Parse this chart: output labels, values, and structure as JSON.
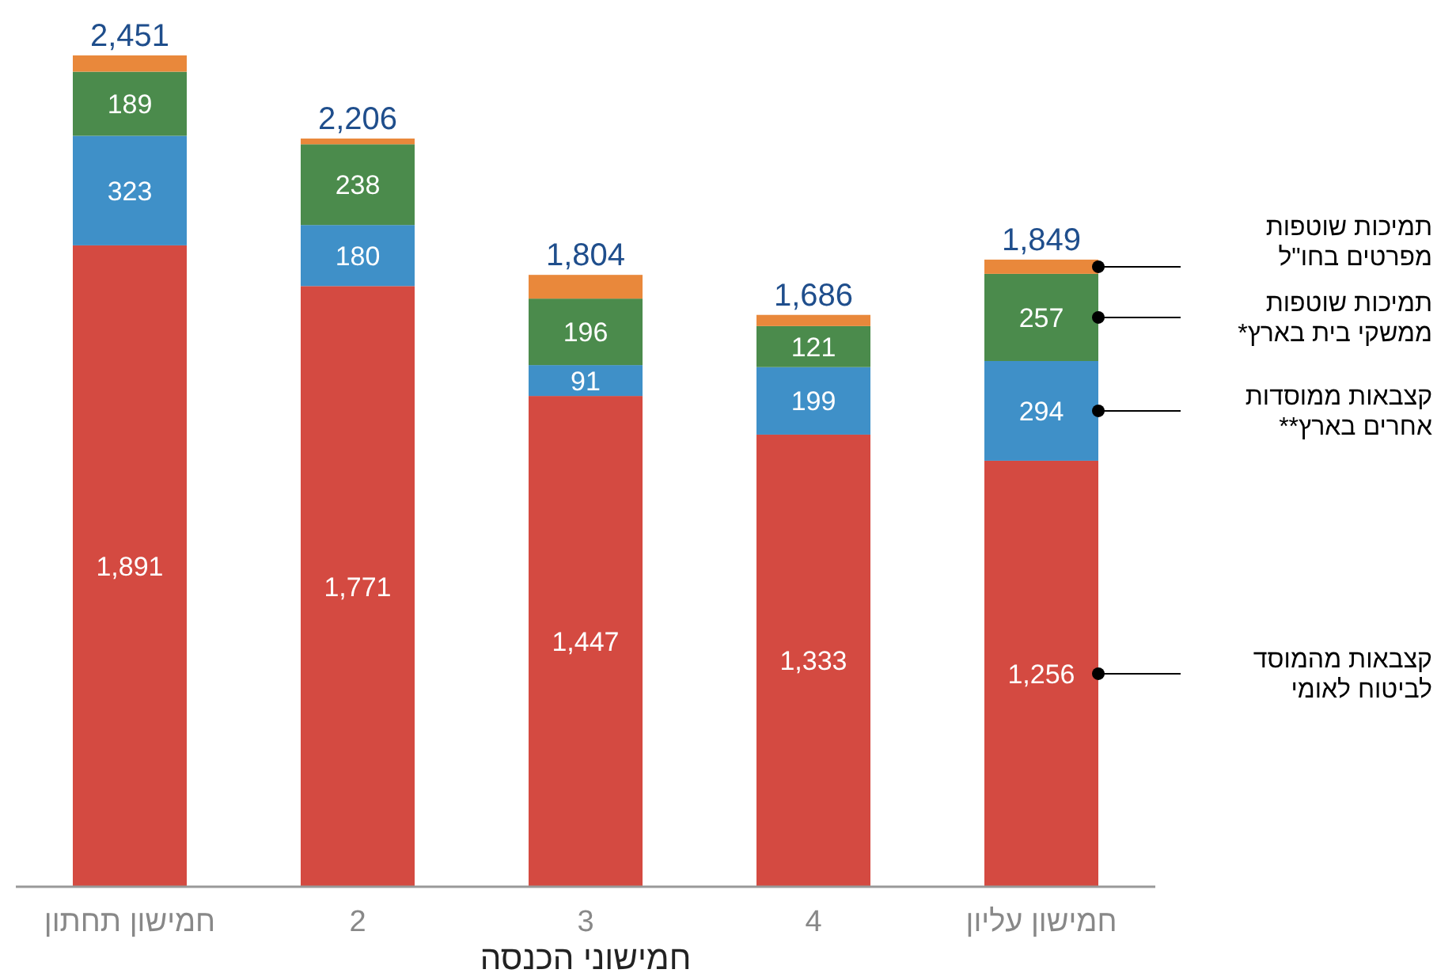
{
  "chart_data": {
    "type": "bar",
    "stacked": true,
    "xlabel": "חמישוני הכנסה",
    "categories": [
      "חמישון תחתון",
      "2",
      "3",
      "4",
      "חמישון עליון"
    ],
    "series": [
      {
        "name": "קצבאות מהמוסד\nלביטוח לאומי",
        "color": "#d44a41",
        "values": [
          1891,
          1771,
          1447,
          1333,
          1256
        ],
        "value_labels": [
          "1,891",
          "1,771",
          "1,447",
          "1,333",
          "1,256"
        ]
      },
      {
        "name": "קצבאות ממוסדות\nאחרים בארץ**",
        "color": "#3f90c8",
        "values": [
          323,
          180,
          91,
          199,
          294
        ],
        "value_labels": [
          "323",
          "180",
          "91",
          "199",
          "294"
        ]
      },
      {
        "name": "תמיכות שוטפות\nממשקי בית בארץ*",
        "color": "#4b8b4c",
        "values": [
          189,
          238,
          196,
          121,
          257
        ],
        "value_labels": [
          "189",
          "238",
          "196",
          "121",
          "257"
        ]
      },
      {
        "name": "תמיכות שוטפות\nמפרטים בחו\"ל",
        "color": "#e9883b",
        "values": [
          48,
          17,
          70,
          33,
          42
        ],
        "value_labels": [
          null,
          null,
          null,
          null,
          null
        ]
      }
    ],
    "totals": [
      "2,451",
      "2,206",
      "1,804",
      "1,686",
      "1,849"
    ],
    "legend": "right"
  }
}
